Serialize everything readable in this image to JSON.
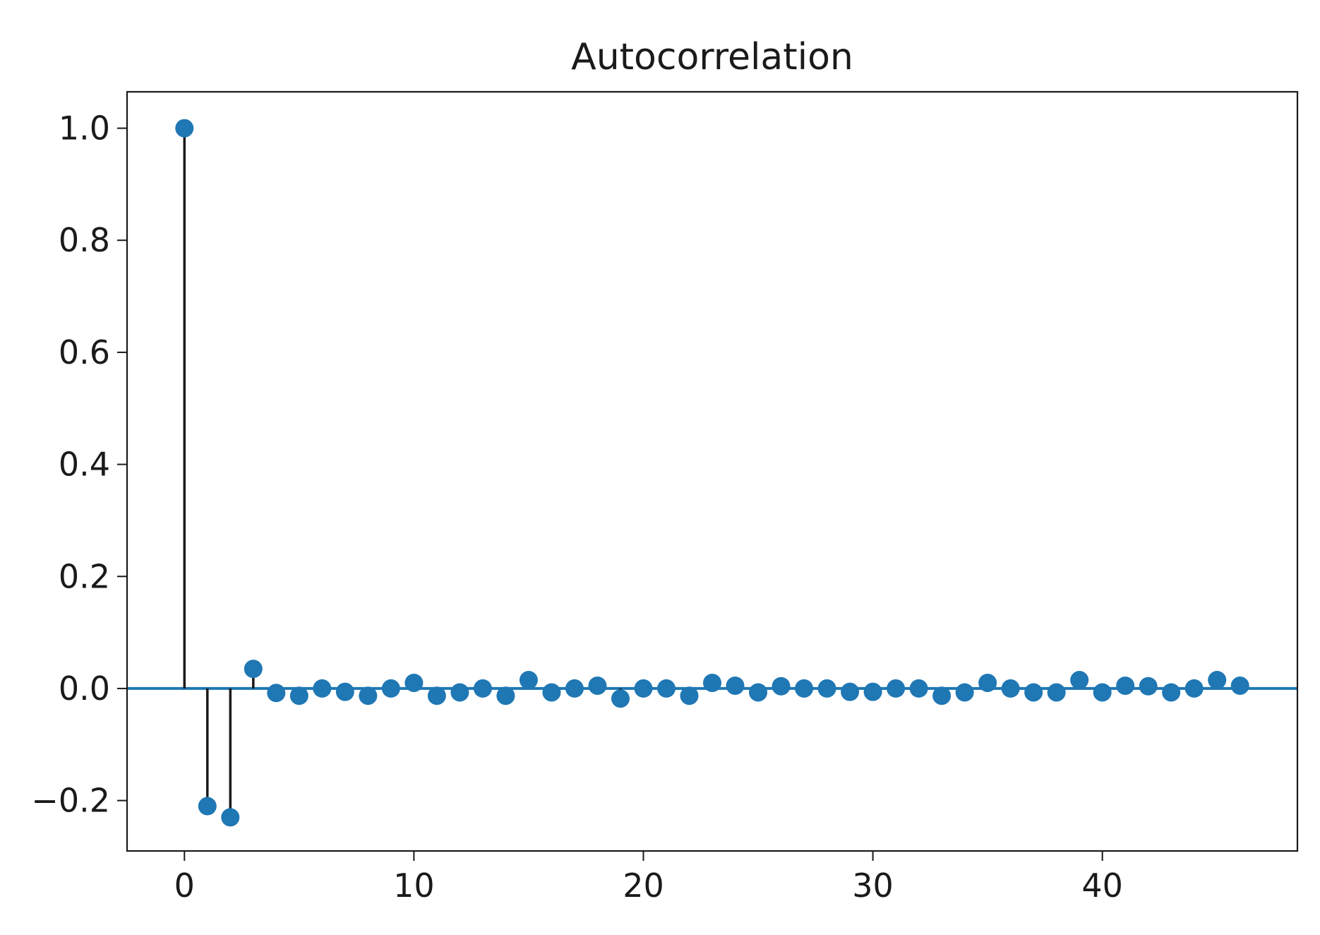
{
  "chart_data": {
    "type": "scatter",
    "subtype": "stem",
    "title": "Autocorrelation",
    "xlabel": "",
    "ylabel": "",
    "xlim": [
      -2.5,
      48.5
    ],
    "ylim": [
      -0.29,
      1.065
    ],
    "xticks": [
      0,
      10,
      20,
      30,
      40
    ],
    "xtick_labels": [
      "0",
      "10",
      "20",
      "30",
      "40"
    ],
    "yticks": [
      -0.2,
      0.0,
      0.2,
      0.4,
      0.6,
      0.8,
      1.0
    ],
    "ytick_labels": [
      "−0.2",
      "0.0",
      "0.2",
      "0.4",
      "0.6",
      "0.8",
      "1.0"
    ],
    "grid": false,
    "legend": "none",
    "zero_line": true,
    "colors": {
      "marker": "#1f77b4",
      "stem": "#1a1a1a",
      "axes": "#1a1a1a"
    },
    "series": [
      {
        "x": [
          0,
          1,
          2,
          3,
          4,
          5,
          6,
          7,
          8,
          9,
          10,
          11,
          12,
          13,
          14,
          15,
          16,
          17,
          18,
          19,
          20,
          21,
          22,
          23,
          24,
          25,
          26,
          27,
          28,
          29,
          30,
          31,
          32,
          33,
          34,
          35,
          36,
          37,
          38,
          39,
          40,
          41,
          42,
          43,
          44,
          45,
          46
        ],
        "y": [
          1.0,
          -0.21,
          -0.23,
          0.035,
          -0.008,
          -0.013,
          0.0,
          -0.006,
          -0.013,
          0.0,
          0.01,
          -0.013,
          -0.007,
          0.0,
          -0.013,
          0.015,
          -0.007,
          0.0,
          0.005,
          -0.018,
          0.0,
          0.0,
          -0.013,
          0.01,
          0.005,
          -0.007,
          0.004,
          0.0,
          0.0,
          -0.006,
          -0.006,
          0.0,
          0.0,
          -0.013,
          -0.007,
          0.01,
          0.0,
          -0.007,
          -0.007,
          0.015,
          -0.007,
          0.005,
          0.004,
          -0.007,
          0.0,
          0.015,
          0.005
        ]
      }
    ]
  }
}
